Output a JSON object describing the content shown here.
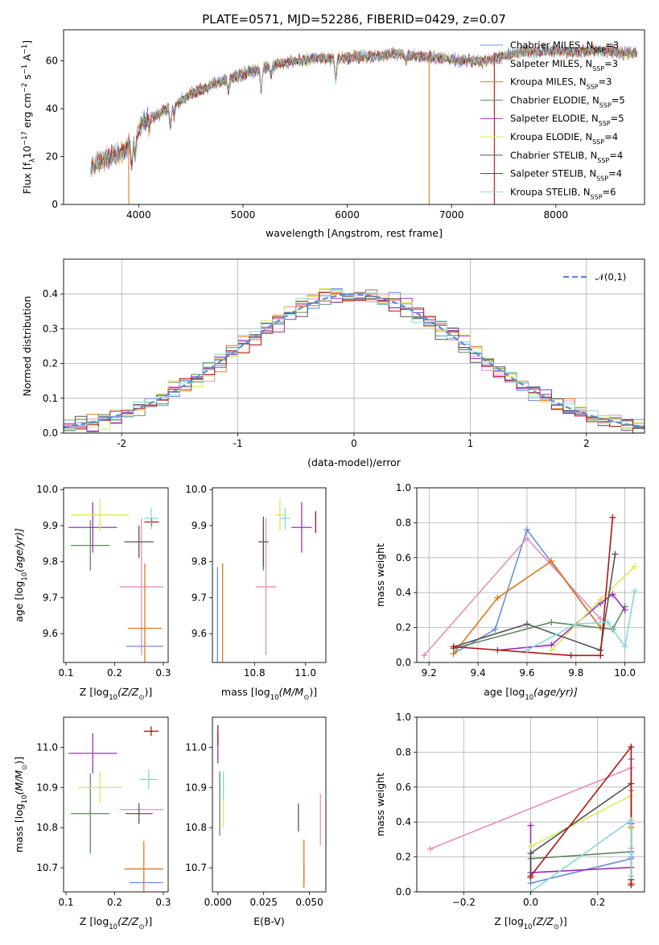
{
  "figure": {
    "title": "PLATE=0571, MJD=52286, FIBERID=0429, z=0.07"
  },
  "series_styles": [
    {
      "name": "Chabrier MILES",
      "nssp": "3",
      "color": "#6a8fd8"
    },
    {
      "name": "Salpeter MILES",
      "nssp": "3",
      "color": "#e68fbf"
    },
    {
      "name": "Kroupa MILES",
      "nssp": "3",
      "color": "#e07a1f"
    },
    {
      "name": "Chabrier ELODIE",
      "nssp": "5",
      "color": "#5f8a5f"
    },
    {
      "name": "Salpeter ELODIE",
      "nssp": "5",
      "color": "#9b30b8"
    },
    {
      "name": "Kroupa ELODIE",
      "nssp": "4",
      "color": "#d6ec5a"
    },
    {
      "name": "Chabrier STELIB",
      "nssp": "4",
      "color": "#555555"
    },
    {
      "name": "Salpeter STELIB",
      "nssp": "4",
      "color": "#b01515"
    },
    {
      "name": "Kroupa STELIB",
      "nssp": "6",
      "color": "#85d8d8"
    }
  ],
  "chart_data": [
    {
      "id": "spectrum",
      "type": "line",
      "xlabel": "wavelength [Angstrom, rest frame]",
      "ylabel": "Flux [f",
      "ylabel_rest": "10",
      "ylabel_exp1": "−17",
      "ylabel_units": " erg cm",
      "ylabel_exp2": "−2",
      "ylabel_s": " s",
      "ylabel_exp3": "−1",
      "ylabel_A": " A",
      "ylabel_exp4": "−1",
      "ylabel_close": "]",
      "xlim": [
        3280,
        8850
      ],
      "ylim": [
        0,
        73
      ],
      "xticks": [
        4000,
        5000,
        6000,
        7000,
        8000
      ],
      "yticks": [
        0,
        20,
        40,
        60
      ],
      "continuum": [
        [
          3540,
          14
        ],
        [
          3650,
          19
        ],
        [
          3750,
          20
        ],
        [
          3850,
          22
        ],
        [
          3950,
          27
        ],
        [
          4050,
          35
        ],
        [
          4200,
          38
        ],
        [
          4350,
          42
        ],
        [
          4500,
          46
        ],
        [
          4700,
          50
        ],
        [
          4900,
          53
        ],
        [
          5100,
          56
        ],
        [
          5300,
          58
        ],
        [
          5500,
          60
        ],
        [
          5700,
          61
        ],
        [
          5900,
          61
        ],
        [
          6100,
          62
        ],
        [
          6300,
          62
        ],
        [
          6500,
          63
        ],
        [
          6700,
          62
        ],
        [
          6900,
          61
        ],
        [
          7100,
          60
        ],
        [
          7300,
          60
        ],
        [
          7500,
          62
        ],
        [
          7700,
          64
        ],
        [
          7900,
          64
        ],
        [
          8100,
          64
        ],
        [
          8300,
          64
        ],
        [
          8500,
          64
        ],
        [
          8780,
          63
        ]
      ],
      "absorption": [
        [
          3934,
          -10
        ],
        [
          3968,
          -8
        ],
        [
          4102,
          -4
        ],
        [
          4305,
          -8
        ],
        [
          4340,
          -4
        ],
        [
          4861,
          -5
        ],
        [
          5175,
          -9
        ],
        [
          5270,
          -4
        ],
        [
          5890,
          -9
        ],
        [
          6563,
          -3
        ]
      ]
    },
    {
      "id": "residuals",
      "type": "histogram",
      "xlabel": "(data-model)/error",
      "ylabel": "Normed distribution",
      "xlim": [
        -2.5,
        2.5
      ],
      "ylim": [
        0,
        0.5
      ],
      "xticks": [
        -2,
        -1,
        0,
        1,
        2
      ],
      "yticks": [
        0.0,
        0.1,
        0.2,
        0.3,
        0.4
      ],
      "bin_width": 0.1,
      "curve_label": "𝒩(0,1)"
    },
    {
      "id": "age-vs-z",
      "type": "errorbar",
      "xlabel": "Z [log",
      "xlabel_sub": "10",
      "xlabel_rest": "(Z/Z",
      "xlabel_sun": "⊙",
      "xlabel_close": ")]",
      "ylabel": "age  [log",
      "ylabel_sub": "10",
      "ylabel_rest": "(age/yr)]",
      "xlim": [
        0.095,
        0.31
      ],
      "ylim": [
        9.52,
        10.005
      ],
      "xticks": [
        0.1,
        0.2,
        0.3
      ],
      "yticks": [
        9.6,
        9.7,
        9.8,
        9.9,
        10.0
      ],
      "points": [
        {
          "s": 0,
          "x": 0.262,
          "y": 9.565,
          "xerr": 0.038,
          "yerr": 0.0
        },
        {
          "s": 1,
          "x": 0.255,
          "y": 9.73,
          "xerr": 0.045,
          "yerr": 0.19
        },
        {
          "s": 2,
          "x": 0.262,
          "y": 9.615,
          "xerr": 0.035,
          "yerr": 0.18
        },
        {
          "s": 3,
          "x": 0.15,
          "y": 9.845,
          "xerr": 0.04,
          "yerr": 0.07
        },
        {
          "s": 4,
          "x": 0.155,
          "y": 9.895,
          "xerr": 0.05,
          "yerr": 0.07
        },
        {
          "s": 5,
          "x": 0.17,
          "y": 9.93,
          "xerr": 0.06,
          "yerr": 0.045
        },
        {
          "s": 6,
          "x": 0.25,
          "y": 9.855,
          "xerr": 0.03,
          "yerr": 0.045
        },
        {
          "s": 7,
          "x": 0.276,
          "y": 9.91,
          "xerr": 0.015,
          "yerr": 0.012
        },
        {
          "s": 8,
          "x": 0.275,
          "y": 9.92,
          "xerr": 0.015,
          "yerr": 0.03
        }
      ]
    },
    {
      "id": "age-vs-mass",
      "type": "errorbar",
      "xlabel": "mass [log",
      "xlabel_sub": "10",
      "xlabel_rest": "(M/M",
      "xlabel_sun": "⊙",
      "xlabel_close": ")]",
      "xlim": [
        10.635,
        11.08
      ],
      "ylim": [
        9.52,
        10.005
      ],
      "xticks": [
        10.8,
        11.0
      ],
      "yticks": [
        9.6,
        9.7,
        9.8,
        9.9,
        10.0
      ],
      "points": [
        {
          "s": 0,
          "x": 10.655,
          "y": 9.565,
          "xerr": 0.0,
          "yerr": 0.22
        },
        {
          "s": 1,
          "x": 10.845,
          "y": 9.73,
          "xerr": 0.04,
          "yerr": 0.19
        },
        {
          "s": 2,
          "x": 10.675,
          "y": 9.615,
          "xerr": 0.0,
          "yerr": 0.18
        },
        {
          "s": 3,
          "x": 10.835,
          "y": 9.845,
          "xerr": 0.0,
          "yerr": 0.07
        },
        {
          "s": 4,
          "x": 10.985,
          "y": 9.895,
          "xerr": 0.04,
          "yerr": 0.07
        },
        {
          "s": 5,
          "x": 10.9,
          "y": 9.93,
          "xerr": 0.02,
          "yerr": 0.045
        },
        {
          "s": 6,
          "x": 10.835,
          "y": 9.855,
          "xerr": 0.02,
          "yerr": 0.07
        },
        {
          "s": 7,
          "x": 11.04,
          "y": 9.91,
          "xerr": 0.0,
          "yerr": 0.03
        },
        {
          "s": 8,
          "x": 10.92,
          "y": 9.92,
          "xerr": 0.02,
          "yerr": 0.03
        }
      ]
    },
    {
      "id": "mass-weight-vs-age",
      "type": "line",
      "xlabel": "age  [log",
      "xlabel_sub": "10",
      "xlabel_rest": "(age/yr)]",
      "ylabel": "mass weight",
      "xlim": [
        9.15,
        10.08
      ],
      "ylim": [
        0,
        1.0
      ],
      "xticks": [
        9.2,
        9.4,
        9.6,
        9.8,
        10.0
      ],
      "yticks": [
        0.0,
        0.2,
        0.4,
        0.6,
        0.8,
        1.0
      ],
      "series": [
        {
          "s": 0,
          "points": [
            [
              9.3,
              0.05
            ],
            [
              9.47,
              0.19
            ],
            [
              9.6,
              0.76
            ],
            [
              9.9,
              0.2
            ]
          ]
        },
        {
          "s": 1,
          "points": [
            [
              9.18,
              0.04
            ],
            [
              9.6,
              0.71
            ],
            [
              9.9,
              0.25
            ]
          ]
        },
        {
          "s": 2,
          "points": [
            [
              9.3,
              0.05
            ],
            [
              9.48,
              0.37
            ],
            [
              9.7,
              0.58
            ],
            [
              9.9,
              0.2
            ]
          ]
        },
        {
          "s": 3,
          "points": [
            [
              9.3,
              0.08
            ],
            [
              9.7,
              0.23
            ],
            [
              9.95,
              0.19
            ],
            [
              10.0,
              0.32
            ]
          ]
        },
        {
          "s": 4,
          "points": [
            [
              9.48,
              0.07
            ],
            [
              9.7,
              0.1
            ],
            [
              9.9,
              0.34
            ],
            [
              9.95,
              0.39
            ],
            [
              10.0,
              0.3
            ]
          ]
        },
        {
          "s": 5,
          "points": [
            [
              9.7,
              0.07
            ],
            [
              9.9,
              0.36
            ],
            [
              10.04,
              0.55
            ]
          ]
        },
        {
          "s": 6,
          "points": [
            [
              9.3,
              0.09
            ],
            [
              9.6,
              0.22
            ],
            [
              9.9,
              0.07
            ],
            [
              9.96,
              0.62
            ]
          ]
        },
        {
          "s": 7,
          "points": [
            [
              9.3,
              0.09
            ],
            [
              9.78,
              0.04
            ],
            [
              9.9,
              0.04
            ],
            [
              9.95,
              0.83
            ]
          ]
        },
        {
          "s": 8,
          "points": [
            [
              9.6,
              0.07
            ],
            [
              9.8,
              0.22
            ],
            [
              9.93,
              0.23
            ],
            [
              10.0,
              0.09
            ],
            [
              10.04,
              0.41
            ]
          ]
        }
      ]
    },
    {
      "id": "mass-vs-z",
      "type": "errorbar",
      "xlabel": "Z [log",
      "xlabel_sub": "10",
      "xlabel_rest": "(Z/Z",
      "xlabel_sun": "⊙",
      "xlabel_close": ")]",
      "ylabel": "mass [log",
      "ylabel_sub": "10",
      "ylabel_rest": "(M/M",
      "ylabel_sun": "⊙",
      "ylabel_close": ")]",
      "xlim": [
        0.095,
        0.31
      ],
      "ylim": [
        10.64,
        11.075
      ],
      "xticks": [
        0.1,
        0.2,
        0.3
      ],
      "yticks": [
        10.7,
        10.8,
        10.9,
        11.0
      ],
      "points": [
        {
          "s": 0,
          "x": 0.265,
          "y": 10.663,
          "xerr": 0.035,
          "yerr": 0.0
        },
        {
          "s": 1,
          "x": 0.255,
          "y": 10.845,
          "xerr": 0.045,
          "yerr": 0.0
        },
        {
          "s": 2,
          "x": 0.26,
          "y": 10.697,
          "xerr": 0.04,
          "yerr": 0.07
        },
        {
          "s": 3,
          "x": 0.15,
          "y": 10.835,
          "xerr": 0.04,
          "yerr": 0.1
        },
        {
          "s": 4,
          "x": 0.155,
          "y": 10.985,
          "xerr": 0.05,
          "yerr": 0.05
        },
        {
          "s": 5,
          "x": 0.17,
          "y": 10.9,
          "xerr": 0.045,
          "yerr": 0.04
        },
        {
          "s": 6,
          "x": 0.25,
          "y": 10.835,
          "xerr": 0.028,
          "yerr": 0.025
        },
        {
          "s": 7,
          "x": 0.275,
          "y": 11.04,
          "xerr": 0.015,
          "yerr": 0.012
        },
        {
          "s": 8,
          "x": 0.27,
          "y": 10.92,
          "xerr": 0.018,
          "yerr": 0.025
        }
      ]
    },
    {
      "id": "mass-vs-ebv",
      "type": "errorbar",
      "xlabel": "E(B-V)",
      "xlim": [
        -0.003,
        0.059
      ],
      "ylim": [
        10.64,
        11.075
      ],
      "xticks": [
        0.0,
        0.025,
        0.05
      ],
      "xtick_labels": [
        "0.000",
        "0.025",
        "0.050"
      ],
      "yticks": [
        10.7,
        10.8,
        10.9,
        11.0
      ],
      "points": [
        {
          "s": 0,
          "x": 0.047,
          "y": 10.685,
          "xerr": 0,
          "yerr": 0.025
        },
        {
          "s": 1,
          "x": 0.056,
          "y": 10.82,
          "xerr": 0,
          "yerr": 0.065
        },
        {
          "s": 2,
          "x": 0.047,
          "y": 10.71,
          "xerr": 0,
          "yerr": 0.06
        },
        {
          "s": 3,
          "x": 0.001,
          "y": 10.86,
          "xerr": 0,
          "yerr": 0.08
        },
        {
          "s": 4,
          "x": 0.0,
          "y": 11.0,
          "xerr": 0,
          "yerr": 0.04
        },
        {
          "s": 5,
          "x": 0.003,
          "y": 10.86,
          "xerr": 0,
          "yerr": 0.06
        },
        {
          "s": 6,
          "x": 0.044,
          "y": 10.825,
          "xerr": 0,
          "yerr": 0.035
        },
        {
          "s": 7,
          "x": 0.0,
          "y": 11.03,
          "xerr": 0,
          "yerr": 0.025
        },
        {
          "s": 8,
          "x": 0.003,
          "y": 10.905,
          "xerr": 0,
          "yerr": 0.035
        }
      ]
    },
    {
      "id": "mass-weight-vs-z",
      "type": "line",
      "xlabel": "Z [log",
      "xlabel_sub": "10",
      "xlabel_rest": "(Z/Z",
      "xlabel_sun": "⊙",
      "xlabel_close": ")]",
      "ylabel": "mass weight",
      "xlim": [
        -0.34,
        0.34
      ],
      "ylim": [
        0,
        1.0
      ],
      "xticks": [
        -0.2,
        0.0,
        0.2
      ],
      "yticks": [
        0.0,
        0.2,
        0.4,
        0.6,
        0.8,
        1.0
      ],
      "series": [
        {
          "s": 0,
          "points": [
            [
              0.0,
              0.05
            ],
            [
              0.3,
              0.19
            ],
            [
              0.3,
              0.76
            ],
            [
              0.3,
              0.2
            ]
          ]
        },
        {
          "s": 1,
          "points": [
            [
              -0.3,
              0.245
            ],
            [
              0.3,
              0.71
            ],
            [
              0.3,
              0.25
            ]
          ]
        },
        {
          "s": 2,
          "points": [
            [
              0.3,
              0.05
            ],
            [
              0.3,
              0.37
            ],
            [
              0.3,
              0.58
            ]
          ]
        },
        {
          "s": 3,
          "points": [
            [
              0.0,
              0.08
            ],
            [
              0.0,
              0.19
            ],
            [
              0.3,
              0.23
            ]
          ]
        },
        {
          "s": 4,
          "points": [
            [
              0.0,
              0.38
            ],
            [
              0.0,
              0.11
            ],
            [
              0.3,
              0.14
            ],
            [
              0.3,
              0.39
            ]
          ]
        },
        {
          "s": 5,
          "points": [
            [
              0.0,
              0.26
            ],
            [
              0.3,
              0.55
            ],
            [
              0.3,
              0.36
            ]
          ]
        },
        {
          "s": 6,
          "points": [
            [
              0.0,
              0.09
            ],
            [
              0.0,
              0.22
            ],
            [
              0.3,
              0.62
            ],
            [
              0.3,
              0.07
            ]
          ]
        },
        {
          "s": 7,
          "points": [
            [
              0.0,
              0.09
            ],
            [
              0.3,
              0.83
            ],
            [
              0.3,
              0.04
            ]
          ]
        },
        {
          "s": 8,
          "points": [
            [
              0.0,
              0.0
            ],
            [
              0.3,
              0.41
            ],
            [
              0.3,
              0.09
            ],
            [
              0.3,
              0.22
            ]
          ]
        }
      ]
    }
  ]
}
